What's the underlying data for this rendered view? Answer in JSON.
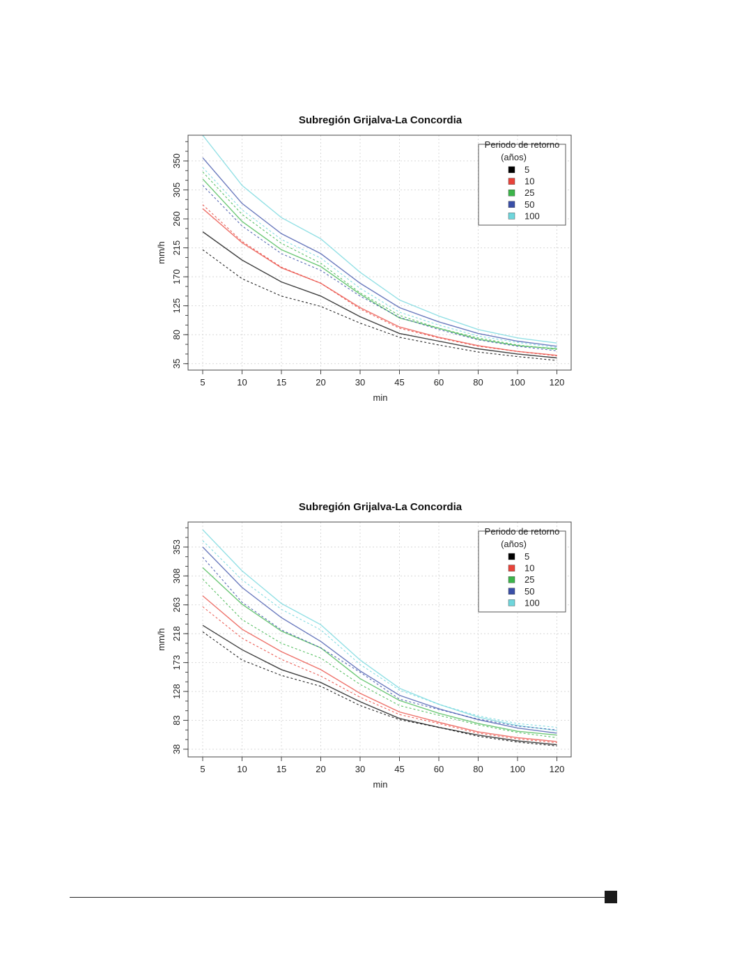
{
  "legend_colors": {
    "5": "#000000",
    "10": "#e8433a",
    "25": "#3cb54a",
    "50": "#3a4fa8",
    "100": "#6fd6dc"
  },
  "chart_data": [
    {
      "type": "line",
      "title": "Subregión Grijalva-La Concordia",
      "xlabel": "min",
      "ylabel": "mm/h",
      "categories": [
        "5",
        "10",
        "15",
        "20",
        "30",
        "45",
        "60",
        "80",
        "100",
        "120"
      ],
      "yticks": [
        "35",
        "80",
        "125",
        "170",
        "215",
        "260",
        "305",
        "350"
      ],
      "ytick_values": [
        35,
        80,
        125,
        170,
        215,
        260,
        305,
        350
      ],
      "ylim": [
        25,
        390
      ],
      "grid": true,
      "legend": {
        "title": "Periodo de retorno",
        "subtitle": "(años)",
        "position": "top-right",
        "labels": [
          "5",
          "10",
          "25",
          "50",
          "100"
        ]
      },
      "series": [
        {
          "key": "5",
          "dash": false,
          "values": [
            240,
            196,
            162,
            140,
            108,
            82,
            70,
            58,
            50,
            44
          ]
        },
        {
          "key": "10",
          "dash": false,
          "values": [
            276,
            223,
            184,
            160,
            122,
            92,
            76,
            63,
            54,
            48
          ]
        },
        {
          "key": "25",
          "dash": false,
          "values": [
            322,
            256,
            212,
            186,
            143,
            106,
            90,
            73,
            63,
            58
          ]
        },
        {
          "key": "50",
          "dash": false,
          "values": [
            355,
            284,
            237,
            206,
            160,
            122,
            100,
            82,
            70,
            62
          ]
        },
        {
          "key": "100",
          "dash": false,
          "values": [
            390,
            312,
            262,
            229,
            177,
            134,
            109,
            88,
            75,
            67
          ]
        },
        {
          "key": "5",
          "dash": true,
          "values": [
            212,
            167,
            140,
            124,
            98,
            76,
            64,
            53,
            46,
            40
          ]
        },
        {
          "key": "10",
          "dash": true,
          "values": [
            282,
            225,
            185,
            160,
            120,
            90,
            75,
            62,
            54,
            47
          ]
        },
        {
          "key": "25",
          "dash": true,
          "values": [
            333,
            267,
            222,
            191,
            145,
            110,
            90,
            75,
            64,
            57
          ]
        },
        {
          "key": "50",
          "dash": true,
          "values": [
            312,
            249,
            206,
            180,
            140,
            107,
            88,
            72,
            62,
            55
          ]
        },
        {
          "key": "100",
          "dash": true,
          "values": [
            340,
            274,
            228,
            199,
            152,
            115,
            95,
            78,
            68,
            60
          ]
        }
      ]
    },
    {
      "type": "line",
      "title": "Subregión Grijalva-La Concordia",
      "xlabel": "min",
      "ylabel": "mm/h",
      "categories": [
        "5",
        "10",
        "15",
        "20",
        "30",
        "45",
        "60",
        "80",
        "100",
        "120"
      ],
      "yticks": [
        "38",
        "83",
        "128",
        "173",
        "218",
        "263",
        "308",
        "353"
      ],
      "ytick_values": [
        38,
        83,
        128,
        173,
        218,
        263,
        308,
        353
      ],
      "ylim": [
        26,
        392
      ],
      "grid": true,
      "legend": {
        "title": "Periodo de retorno",
        "subtitle": "(años)",
        "position": "top-right",
        "labels": [
          "5",
          "10",
          "25",
          "50",
          "100"
        ]
      },
      "series": [
        {
          "key": "5",
          "dash": false,
          "values": [
            231,
            193,
            162,
            142,
            112,
            86,
            72,
            60,
            51,
            45
          ]
        },
        {
          "key": "10",
          "dash": false,
          "values": [
            277,
            225,
            190,
            162,
            125,
            96,
            80,
            65,
            56,
            50
          ]
        },
        {
          "key": "25",
          "dash": false,
          "values": [
            321,
            264,
            222,
            196,
            148,
            114,
            94,
            78,
            66,
            60
          ]
        },
        {
          "key": "50",
          "dash": false,
          "values": [
            353,
            290,
            243,
            206,
            160,
            122,
            101,
            84,
            71,
            63
          ]
        },
        {
          "key": "100",
          "dash": false,
          "values": [
            380,
            316,
            265,
            232,
            177,
            133,
            108,
            88,
            75,
            67
          ]
        },
        {
          "key": "5",
          "dash": true,
          "values": [
            221,
            177,
            153,
            136,
            106,
            84,
            72,
            58,
            49,
            43
          ]
        },
        {
          "key": "10",
          "dash": true,
          "values": [
            260,
            211,
            178,
            152,
            119,
            92,
            78,
            63,
            54,
            48
          ]
        },
        {
          "key": "25",
          "dash": true,
          "values": [
            303,
            240,
            203,
            180,
            139,
            106,
            91,
            76,
            64,
            56
          ]
        },
        {
          "key": "50",
          "dash": true,
          "values": [
            337,
            267,
            224,
            196,
            158,
            116,
            100,
            85,
            74,
            68
          ]
        },
        {
          "key": "100",
          "dash": true,
          "values": [
            363,
            302,
            256,
            224,
            170,
            130,
            108,
            90,
            78,
            72
          ]
        }
      ]
    }
  ]
}
